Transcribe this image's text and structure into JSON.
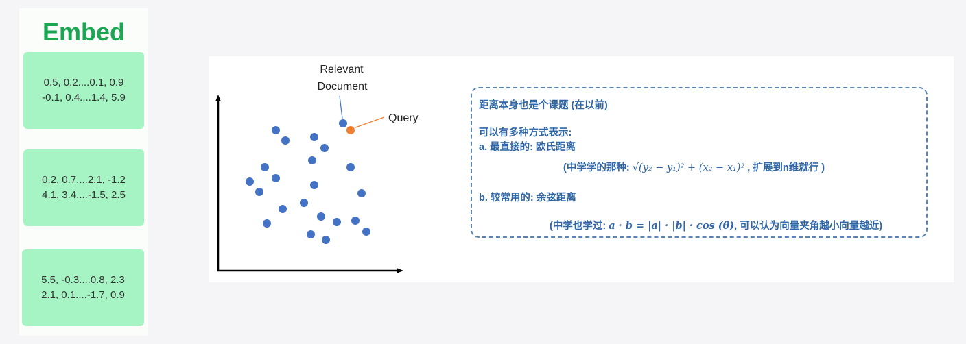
{
  "embed": {
    "title": "Embed",
    "vectors": [
      {
        "line1": "0.5, 0.2....0.1, 0.9",
        "line2": "-0.1, 0.4....1.4, 5.9"
      },
      {
        "line1": "0.2, 0.7....2.1, -1.2",
        "line2": "4.1, 3.4....-1.5, 2.5"
      },
      {
        "line1": "5.5, -0.3....0.8, 2.3",
        "line2": "2.1, 0.1....-1.7, 0.9"
      }
    ]
  },
  "figure": {
    "relevant_label_line1": "Relevant",
    "relevant_label_line2": "Document",
    "query_label": "Query",
    "colors": {
      "points": "#4472c4",
      "query": "#ed7d31",
      "axis": "#000000"
    }
  },
  "notes": {
    "line1": "距离本身也是个课题 (在以前)",
    "line2": "可以有多种方式表示:",
    "line3": "a.  最直接的:  欧氏距离",
    "line4_prefix": "(中学学的那种: ",
    "line4_formula": "√(y₂ − y₁)² + (x₂ − x₁)²",
    "line4_suffix": " , 扩展到n维就行 )",
    "line5": "b.  较常用的: 余弦距离",
    "line6_prefix": "(中学也学过: ",
    "line6_formula": "a · b = |a| · |b| · cos (θ)",
    "line6_suffix": ", 可以认为向量夹角越小向量越近)",
    "colors": {
      "text": "#2f66a6",
      "border": "#5a84b3"
    }
  }
}
